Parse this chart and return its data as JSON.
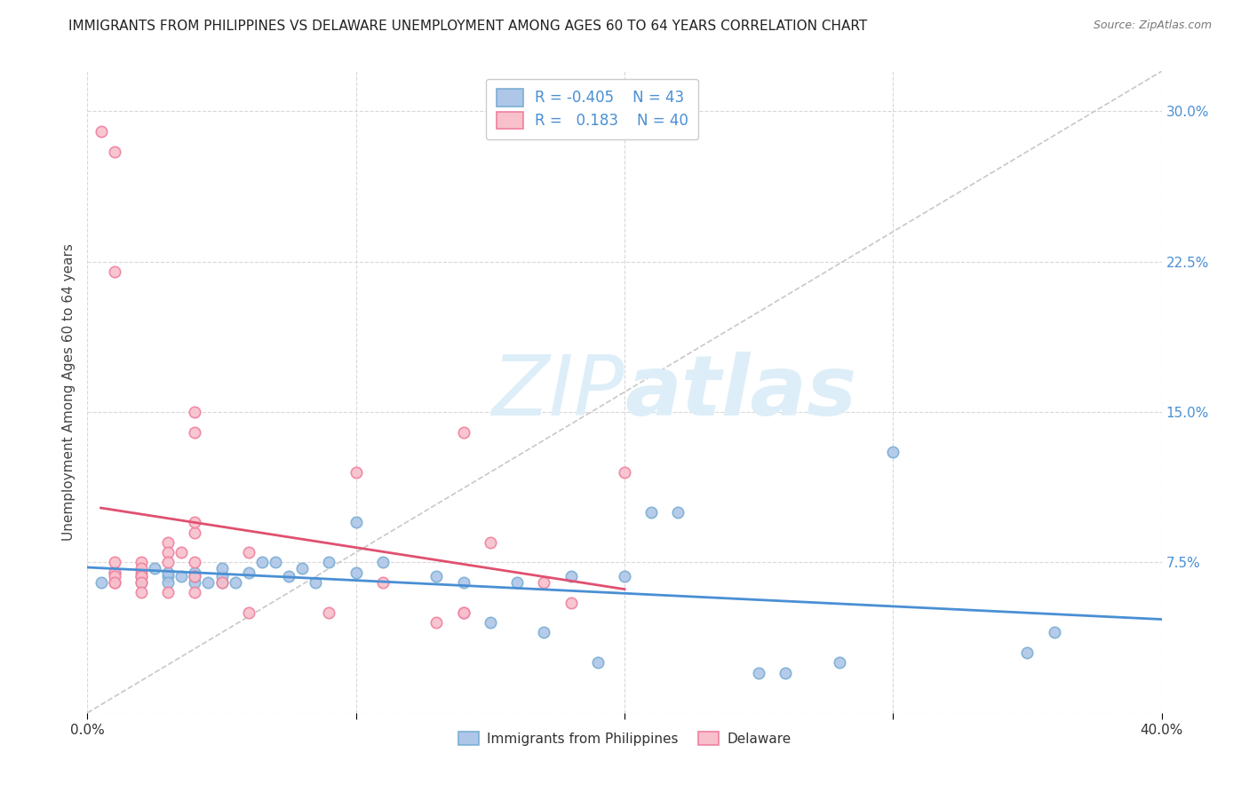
{
  "title": "IMMIGRANTS FROM PHILIPPINES VS DELAWARE UNEMPLOYMENT AMONG AGES 60 TO 64 YEARS CORRELATION CHART",
  "source": "Source: ZipAtlas.com",
  "ylabel": "Unemployment Among Ages 60 to 64 years",
  "ytick_vals": [
    0.0,
    0.075,
    0.15,
    0.225,
    0.3
  ],
  "ytick_labels": [
    "",
    "7.5%",
    "15.0%",
    "22.5%",
    "30.0%"
  ],
  "xtick_vals": [
    0.0,
    0.1,
    0.2,
    0.3,
    0.4
  ],
  "xtick_labels": [
    "0.0%",
    "",
    "",
    "",
    "40.0%"
  ],
  "xlim": [
    0.0,
    0.4
  ],
  "ylim": [
    0.0,
    0.32
  ],
  "blue_fill_color": "#aec6e8",
  "blue_edge_color": "#7bafd4",
  "blue_line_color": "#4a8fd4",
  "pink_fill_color": "#f8c0cb",
  "pink_edge_color": "#f080a0",
  "pink_line_color": "#e05070",
  "diag_line_color": "#c8c8c8",
  "legend_R1": "-0.405",
  "legend_N1": "43",
  "legend_R2": "0.183",
  "legend_N2": "40",
  "blue_scatter_x": [
    0.005,
    0.01,
    0.02,
    0.02,
    0.025,
    0.03,
    0.03,
    0.03,
    0.035,
    0.04,
    0.04,
    0.04,
    0.045,
    0.05,
    0.05,
    0.05,
    0.055,
    0.06,
    0.065,
    0.07,
    0.075,
    0.08,
    0.085,
    0.09,
    0.1,
    0.1,
    0.11,
    0.13,
    0.14,
    0.15,
    0.16,
    0.17,
    0.18,
    0.19,
    0.2,
    0.21,
    0.22,
    0.25,
    0.26,
    0.28,
    0.3,
    0.35,
    0.36
  ],
  "blue_scatter_y": [
    0.065,
    0.07,
    0.065,
    0.068,
    0.072,
    0.068,
    0.07,
    0.065,
    0.068,
    0.065,
    0.07,
    0.068,
    0.065,
    0.065,
    0.068,
    0.072,
    0.065,
    0.07,
    0.075,
    0.075,
    0.068,
    0.072,
    0.065,
    0.075,
    0.095,
    0.07,
    0.075,
    0.068,
    0.065,
    0.045,
    0.065,
    0.04,
    0.068,
    0.025,
    0.068,
    0.1,
    0.1,
    0.02,
    0.02,
    0.025,
    0.13,
    0.03,
    0.04
  ],
  "pink_scatter_x": [
    0.005,
    0.01,
    0.01,
    0.01,
    0.01,
    0.01,
    0.01,
    0.01,
    0.02,
    0.02,
    0.02,
    0.02,
    0.02,
    0.02,
    0.03,
    0.03,
    0.03,
    0.03,
    0.035,
    0.04,
    0.04,
    0.04,
    0.04,
    0.04,
    0.04,
    0.04,
    0.05,
    0.06,
    0.06,
    0.09,
    0.1,
    0.11,
    0.13,
    0.14,
    0.14,
    0.14,
    0.15,
    0.17,
    0.18,
    0.2
  ],
  "pink_scatter_y": [
    0.29,
    0.28,
    0.22,
    0.065,
    0.07,
    0.068,
    0.075,
    0.065,
    0.075,
    0.07,
    0.072,
    0.068,
    0.065,
    0.06,
    0.085,
    0.08,
    0.075,
    0.06,
    0.08,
    0.075,
    0.15,
    0.14,
    0.09,
    0.095,
    0.068,
    0.06,
    0.065,
    0.08,
    0.05,
    0.05,
    0.12,
    0.065,
    0.045,
    0.05,
    0.05,
    0.14,
    0.085,
    0.065,
    0.055,
    0.12
  ],
  "watermark_zip": "ZIP",
  "watermark_atlas": "atlas",
  "watermark_color": "#ddeef8",
  "background_color": "#ffffff",
  "grid_color": "#d8d8d8",
  "label_blue": "Immigrants from Philippines",
  "label_pink": "Delaware"
}
